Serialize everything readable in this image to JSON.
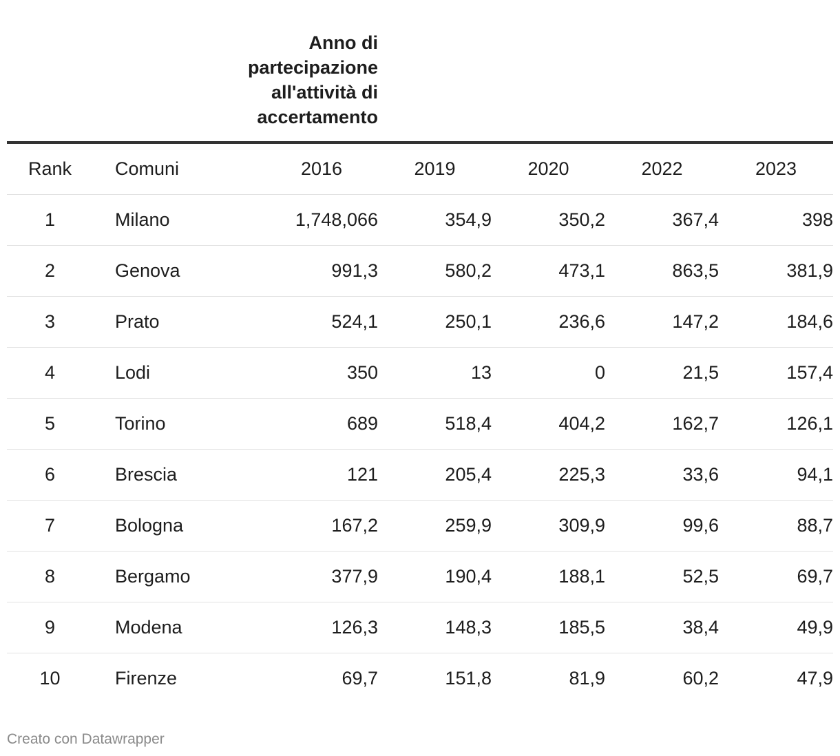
{
  "group_header": "Anno di partecipazione all'attività di accertamento",
  "columns": [
    "Rank",
    "Comuni",
    "2016",
    "2019",
    "2020",
    "2022",
    "2023"
  ],
  "rows": [
    [
      "1",
      "Milano",
      "1,748,066",
      "354,9",
      "350,2",
      "367,4",
      "398"
    ],
    [
      "2",
      "Genova",
      "991,3",
      "580,2",
      "473,1",
      "863,5",
      "381,9"
    ],
    [
      "3",
      "Prato",
      "524,1",
      "250,1",
      "236,6",
      "147,2",
      "184,6"
    ],
    [
      "4",
      "Lodi",
      "350",
      "13",
      "0",
      "21,5",
      "157,4"
    ],
    [
      "5",
      "Torino",
      "689",
      "518,4",
      "404,2",
      "162,7",
      "126,1"
    ],
    [
      "6",
      "Brescia",
      "121",
      "205,4",
      "225,3",
      "33,6",
      "94,1"
    ],
    [
      "7",
      "Bologna",
      "167,2",
      "259,9",
      "309,9",
      "99,6",
      "88,7"
    ],
    [
      "8",
      "Bergamo",
      "377,9",
      "190,4",
      "188,1",
      "52,5",
      "69,7"
    ],
    [
      "9",
      "Modena",
      "126,3",
      "148,3",
      "185,5",
      "38,4",
      "49,9"
    ],
    [
      "10",
      "Firenze",
      "69,7",
      "151,8",
      "81,9",
      "60,2",
      "47,9"
    ]
  ],
  "chart_data": {
    "type": "table",
    "columns": [
      "Rank",
      "Comuni",
      "2016",
      "2019",
      "2020",
      "2022",
      "2023"
    ],
    "group_header": "Anno di partecipazione all'attività di accertamento",
    "rows": [
      {
        "Rank": 1,
        "Comuni": "Milano",
        "2016": "1,748,066",
        "2019": 354.9,
        "2020": 350.2,
        "2022": 367.4,
        "2023": 398
      },
      {
        "Rank": 2,
        "Comuni": "Genova",
        "2016": 991.3,
        "2019": 580.2,
        "2020": 473.1,
        "2022": 863.5,
        "2023": 381.9
      },
      {
        "Rank": 3,
        "Comuni": "Prato",
        "2016": 524.1,
        "2019": 250.1,
        "2020": 236.6,
        "2022": 147.2,
        "2023": 184.6
      },
      {
        "Rank": 4,
        "Comuni": "Lodi",
        "2016": 350,
        "2019": 13,
        "2020": 0,
        "2022": 21.5,
        "2023": 157.4
      },
      {
        "Rank": 5,
        "Comuni": "Torino",
        "2016": 689,
        "2019": 518.4,
        "2020": 404.2,
        "2022": 162.7,
        "2023": 126.1
      },
      {
        "Rank": 6,
        "Comuni": "Brescia",
        "2016": 121,
        "2019": 205.4,
        "2020": 225.3,
        "2022": 33.6,
        "2023": 94.1
      },
      {
        "Rank": 7,
        "Comuni": "Bologna",
        "2016": 167.2,
        "2019": 259.9,
        "2020": 309.9,
        "2022": 99.6,
        "2023": 88.7
      },
      {
        "Rank": 8,
        "Comuni": "Bergamo",
        "2016": 377.9,
        "2019": 190.4,
        "2020": 188.1,
        "2022": 52.5,
        "2023": 69.7
      },
      {
        "Rank": 9,
        "Comuni": "Modena",
        "2016": 126.3,
        "2019": 148.3,
        "2020": 185.5,
        "2022": 38.4,
        "2023": 49.9
      },
      {
        "Rank": 10,
        "Comuni": "Firenze",
        "2016": 69.7,
        "2019": 151.8,
        "2020": 81.9,
        "2022": 60.2,
        "2023": 47.9
      }
    ]
  },
  "footer": "Creato con Datawrapper"
}
